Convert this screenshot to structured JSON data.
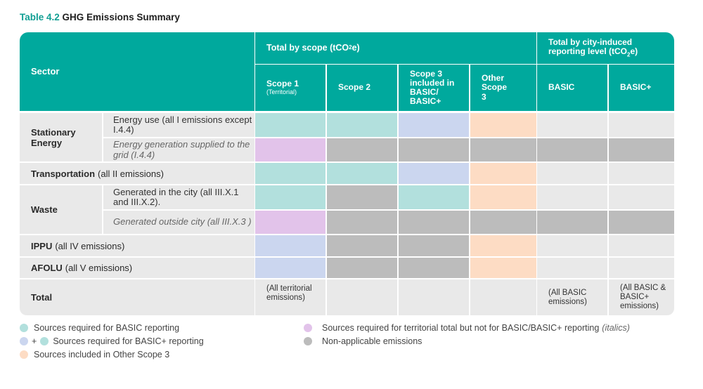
{
  "caption": {
    "number": "Table 4.2",
    "title": "GHG Emissions Summary"
  },
  "header": {
    "sector": "Sector",
    "total_by_scope": "Total by scope (tCO",
    "total_by_scope_sub": "2",
    "total_by_scope_end": "e)",
    "city_level": "Total by city-induced reporting level (tCO",
    "city_level_sub": "2",
    "city_level_end": "e)",
    "scope1": "Scope 1",
    "scope1_note": "(Territorial)",
    "scope2": "Scope 2",
    "scope3": "Scope 3 included in BASIC/ BASIC+",
    "other_scope3": "Other Scope 3",
    "basic": "BASIC",
    "basic_plus": "BASIC+"
  },
  "rows": {
    "stationary": "Stationary Energy",
    "energy_use": "Energy use (all I emissions except I.4.4)",
    "energy_gen": "Energy generation supplied to the grid (I.4.4)",
    "transport_bold": "Transportation",
    "transport_rest": "(all II emissions)",
    "waste": "Waste",
    "waste_in": "Generated in the city (all III.X.1 and III.X.2).",
    "waste_out": "Generated outside city (all III.X.3 )",
    "ippu_bold": "IPPU",
    "ippu_rest": "(all IV emissions)",
    "afolu_bold": "AFOLU",
    "afolu_rest": "(all V emissions)",
    "total": "Total",
    "total_scope1": "(All territorial emissions)",
    "total_basic": "(All BASIC emissions)",
    "total_basic_plus": "(All BASIC & BASIC+ emissions)"
  },
  "legend": {
    "basic": "Sources required for BASIC reporting",
    "plus_sign": "+",
    "basic_plus": "Sources required for BASIC+ reporting",
    "other_scope3": "Sources included in Other Scope 3",
    "territorial": "Sources required for territorial total but not for BASIC/BASIC+ reporting",
    "territorial_note": "(italics)",
    "non_applicable": "Non-applicable emissions"
  },
  "colors": {
    "header": "#00a99d",
    "basic": "#b2e0dd",
    "basic_plus": "#cbd6ef",
    "other_scope3": "#fddcc4",
    "territorial": "#e2c3ea",
    "non_applicable": "#bcbcbc",
    "empty": "#e9e9e9"
  }
}
